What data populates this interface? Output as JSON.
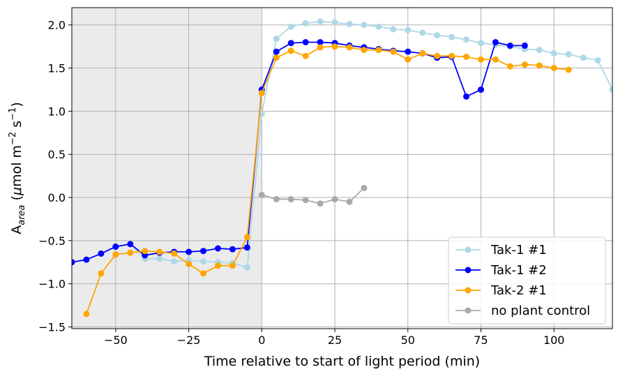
{
  "chart_data": {
    "type": "line",
    "xlabel": "Time relative to start of light period (min)",
    "ylabel_main": "A",
    "ylabel_sub": "area",
    "ylabel_rest_1": " (",
    "ylabel_mu": "μ",
    "ylabel_rest_2": "mol m",
    "ylabel_exp1": "−2",
    "ylabel_rest_3": " s",
    "ylabel_exp2": "−1",
    "ylabel_rest_4": ")",
    "xlim": [
      -65,
      120
    ],
    "ylim": [
      -1.52,
      2.2
    ],
    "xticks": [
      -50,
      -25,
      0,
      25,
      50,
      75,
      100
    ],
    "xtick_labels": [
      "−50",
      "−25",
      "0",
      "25",
      "50",
      "75",
      "100"
    ],
    "yticks": [
      -1.5,
      -1.0,
      -0.5,
      0.0,
      0.5,
      1.0,
      1.5,
      2.0
    ],
    "ytick_labels": [
      "−1.5",
      "−1.0",
      "−0.5",
      "0.0",
      "0.5",
      "1.0",
      "1.5",
      "2.0"
    ],
    "grid": true,
    "dark_period_shading": {
      "x_from": -65,
      "x_to": 0,
      "color": "#ebebeb"
    },
    "legend_position": "lower right",
    "series": [
      {
        "name": "Tak-1 #1",
        "color": "#add8e6",
        "x": [
          -65,
          -60,
          -55,
          -50,
          -45,
          -40,
          -35,
          -30,
          -25,
          -20,
          -15,
          -10,
          -5,
          0,
          5,
          10,
          15,
          20,
          25,
          30,
          35,
          40,
          45,
          50,
          55,
          60,
          65,
          70,
          75,
          80,
          85,
          90,
          95,
          100,
          105,
          110,
          115,
          120
        ],
        "y": [
          -0.75,
          -0.72,
          -0.65,
          -0.57,
          -0.54,
          -0.71,
          -0.71,
          -0.74,
          -0.73,
          -0.74,
          -0.75,
          -0.76,
          -0.81,
          0.97,
          1.84,
          1.98,
          2.02,
          2.04,
          2.03,
          2.01,
          2.0,
          1.98,
          1.95,
          1.94,
          1.91,
          1.88,
          1.86,
          1.83,
          1.79,
          1.77,
          1.75,
          1.72,
          1.71,
          1.67,
          1.66,
          1.62,
          1.59,
          1.25
        ]
      },
      {
        "name": "Tak-1 #2",
        "color": "#0000ff",
        "x": [
          -65,
          -60,
          -55,
          -50,
          -45,
          -40,
          -35,
          -30,
          -25,
          -20,
          -15,
          -10,
          -5,
          0,
          5,
          10,
          15,
          20,
          25,
          30,
          35,
          40,
          45,
          50,
          55,
          60,
          65,
          70,
          75,
          80,
          85,
          90
        ],
        "y": [
          -0.75,
          -0.72,
          -0.65,
          -0.57,
          -0.54,
          -0.67,
          -0.64,
          -0.63,
          -0.63,
          -0.62,
          -0.59,
          -0.6,
          -0.58,
          1.25,
          1.69,
          1.79,
          1.8,
          1.8,
          1.79,
          1.76,
          1.74,
          1.72,
          1.7,
          1.69,
          1.67,
          1.62,
          1.63,
          1.17,
          1.25,
          1.8,
          1.76,
          1.76
        ]
      },
      {
        "name": "Tak-2 #1",
        "color": "#ffa500",
        "x": [
          -60,
          -55,
          -50,
          -45,
          -40,
          -35,
          -30,
          -25,
          -20,
          -15,
          -10,
          -5,
          0,
          5,
          10,
          15,
          20,
          25,
          30,
          35,
          40,
          45,
          50,
          55,
          60,
          65,
          70,
          75,
          80,
          85,
          90,
          95,
          100,
          105
        ],
        "y": [
          -1.35,
          -0.88,
          -0.66,
          -0.64,
          -0.62,
          -0.63,
          -0.65,
          -0.77,
          -0.88,
          -0.79,
          -0.79,
          -0.46,
          1.21,
          1.62,
          1.7,
          1.64,
          1.74,
          1.75,
          1.74,
          1.71,
          1.71,
          1.69,
          1.6,
          1.67,
          1.64,
          1.64,
          1.63,
          1.6,
          1.6,
          1.52,
          1.54,
          1.53,
          1.5,
          1.48
        ]
      },
      {
        "name": "no plant control",
        "color": "#a9a9a9",
        "x": [
          0,
          5,
          10,
          15,
          20,
          25,
          30,
          35
        ],
        "y": [
          0.03,
          -0.02,
          -0.02,
          -0.03,
          -0.07,
          -0.02,
          -0.05,
          0.11
        ]
      }
    ]
  }
}
